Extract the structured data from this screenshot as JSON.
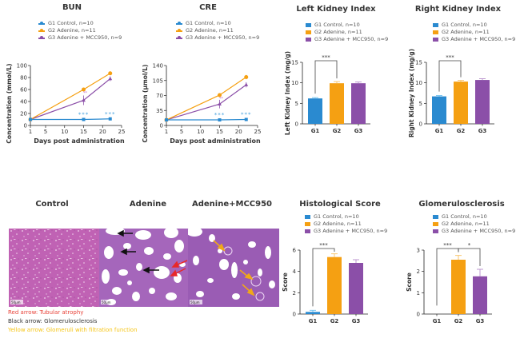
{
  "colors": {
    "g1": "#2a8ad0",
    "g2": "#f5a012",
    "g3": "#8b4fa8",
    "sig": "#4aa3df"
  },
  "legend": [
    {
      "label": "G1 Control, n=10"
    },
    {
      "label": "G2 Adenine, n=11"
    },
    {
      "label": "G3 Adenine + MCC950, n=9"
    }
  ],
  "histology": {
    "titles": [
      "Control",
      "Adenine",
      "Adenine+MCC950"
    ],
    "scale_bar": "50μm",
    "captions": [
      {
        "text": "Red arrow: Tubular atrophy",
        "color": "#e8443a"
      },
      {
        "text": "Black arrow: Glomerulosclerosis",
        "color": "#333333"
      },
      {
        "text": "Yellow arrow: Glomeruli with filtration function",
        "color": "#f5c518"
      }
    ]
  },
  "chart_data": [
    {
      "type": "line",
      "title": "BUN",
      "xlabel": "Days post administration",
      "ylabel": "Concentration (mmol/L)",
      "xlim": [
        1,
        25
      ],
      "ylim": [
        0,
        100
      ],
      "xticks": [
        1,
        5,
        10,
        15,
        20,
        25
      ],
      "yticks": [
        0,
        20,
        40,
        60,
        80,
        100
      ],
      "x": [
        1,
        15,
        22
      ],
      "series": [
        {
          "name": "G1 Control, n=10",
          "values": [
            10,
            10,
            11
          ],
          "err": [
            0.5,
            0.5,
            0.5
          ]
        },
        {
          "name": "G2 Adenine, n=11",
          "values": [
            10,
            60,
            87
          ],
          "err": [
            0.5,
            3,
            2
          ]
        },
        {
          "name": "G3 Adenine + MCC950, n=9",
          "values": [
            10,
            42,
            78
          ],
          "err": [
            0.5,
            8,
            4
          ]
        }
      ],
      "annotations": [
        "***",
        "***"
      ]
    },
    {
      "type": "line",
      "title": "CRE",
      "xlabel": "Days post administration",
      "ylabel": "Concentration (μmol/L)",
      "xlim": [
        1,
        25
      ],
      "ylim": [
        0,
        140
      ],
      "xticks": [
        1,
        5,
        10,
        15,
        20,
        25
      ],
      "yticks": [
        0,
        35,
        70,
        105,
        140
      ],
      "x": [
        1,
        15,
        22
      ],
      "series": [
        {
          "name": "G1 Control, n=10",
          "values": [
            13,
            13,
            14
          ],
          "err": [
            0.5,
            0.5,
            1
          ]
        },
        {
          "name": "G2 Adenine, n=11",
          "values": [
            13,
            71,
            113
          ],
          "err": [
            0.5,
            4,
            5
          ]
        },
        {
          "name": "G3 Adenine + MCC950, n=9",
          "values": [
            13,
            50,
            95
          ],
          "err": [
            0.5,
            10,
            6
          ]
        }
      ],
      "annotations": [
        "***",
        "***"
      ]
    },
    {
      "type": "bar",
      "title": "Left Kidney Index",
      "ylabel": "Left Kidney Index (mg/g)",
      "categories": [
        "G1",
        "G2",
        "G3"
      ],
      "values": [
        6.2,
        9.9,
        9.9
      ],
      "err": [
        0.2,
        0.4,
        0.3
      ],
      "ylim": [
        0,
        15
      ],
      "yticks": [
        0,
        5,
        10,
        15
      ],
      "significance": [
        {
          "from": 0,
          "to": 1,
          "label": "***"
        }
      ]
    },
    {
      "type": "bar",
      "title": "Right Kidney Index",
      "ylabel": "Right Kidney Index (mg/g)",
      "categories": [
        "G1",
        "G2",
        "G3"
      ],
      "values": [
        6.7,
        10.3,
        10.7
      ],
      "err": [
        0.2,
        0.3,
        0.3
      ],
      "ylim": [
        0,
        15
      ],
      "yticks": [
        0,
        5,
        10,
        15
      ],
      "significance": [
        {
          "from": 0,
          "to": 1,
          "label": "***"
        }
      ]
    },
    {
      "type": "bar",
      "title": "Histological Score",
      "ylabel": "Score",
      "categories": [
        "G1",
        "G2",
        "G3"
      ],
      "values": [
        0.2,
        5.35,
        4.8
      ],
      "err": [
        0.15,
        0.3,
        0.3
      ],
      "ylim": [
        0,
        6
      ],
      "yticks": [
        0,
        2,
        4,
        6
      ],
      "significance": [
        {
          "from": 0,
          "to": 1,
          "label": "***"
        }
      ]
    },
    {
      "type": "bar",
      "title": "Glomerulosclerosis",
      "ylabel": "Score",
      "categories": [
        "G1",
        "G2",
        "G3"
      ],
      "values": [
        0,
        2.55,
        1.77
      ],
      "err": [
        0,
        0.2,
        0.33
      ],
      "ylim": [
        0,
        3
      ],
      "yticks": [
        0,
        1,
        2,
        3
      ],
      "significance": [
        {
          "from": 0,
          "to": 1,
          "label": "***"
        },
        {
          "from": 1,
          "to": 2,
          "label": "*"
        }
      ]
    }
  ]
}
